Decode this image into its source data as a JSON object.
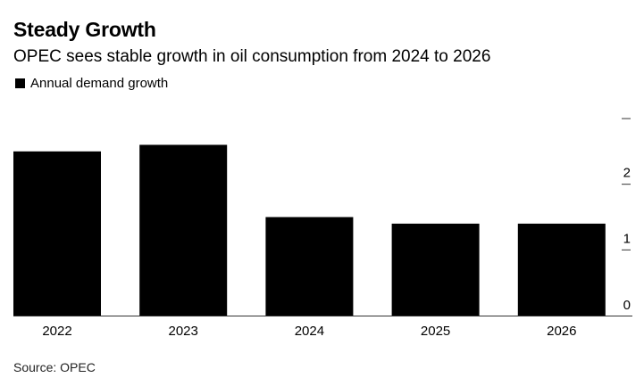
{
  "chart_data": {
    "type": "bar",
    "title": "Steady Growth",
    "subtitle": "OPEC sees stable growth in oil consumption from 2024 to 2026",
    "legend": [
      {
        "name": "Annual demand growth",
        "color": "#000000"
      }
    ],
    "legend_position": "top-left",
    "categories": [
      "2022",
      "2023",
      "2024",
      "2025",
      "2026"
    ],
    "series": [
      {
        "name": "Annual demand growth",
        "values": [
          2.5,
          2.6,
          1.5,
          1.4,
          1.4
        ],
        "color": "#000000"
      }
    ],
    "xlabel": "",
    "ylabel": "",
    "ylim": [
      0,
      3
    ],
    "yticks": [
      0,
      1,
      2,
      3
    ],
    "ytick_labels": [
      "0",
      "1",
      "2",
      ""
    ],
    "y_axis_side": "right",
    "grid": false,
    "source": "Source: OPEC"
  }
}
